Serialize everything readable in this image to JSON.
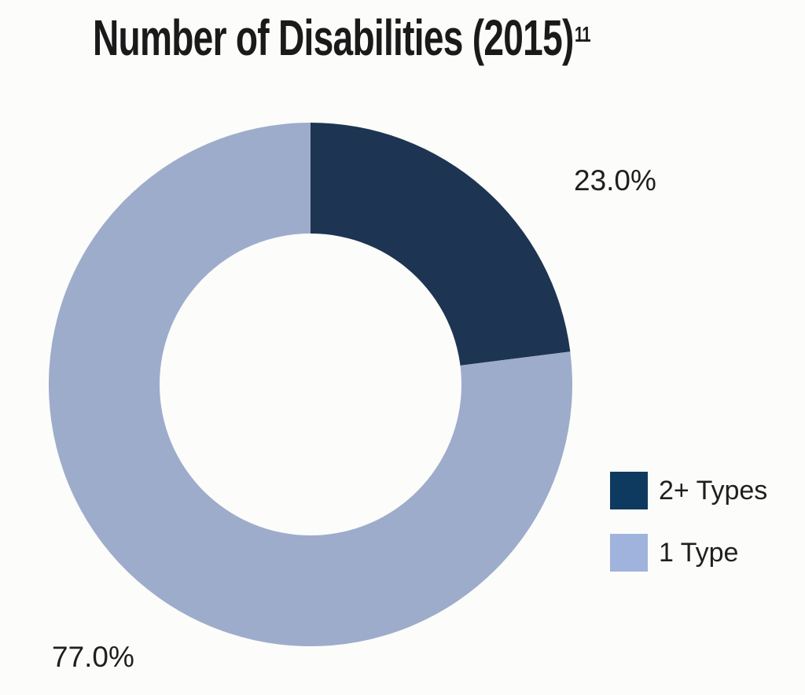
{
  "title": "Number of Disabilities (2015)",
  "title_footnote": "11",
  "chart_data": {
    "type": "pie",
    "donut": true,
    "title": "Number of Disabilities (2015)",
    "slices": [
      {
        "label": "2+ Types",
        "value": 23.0,
        "display": "23.0%",
        "color": "#1d3552"
      },
      {
        "label": "1 Type",
        "value": 77.0,
        "display": "77.0%",
        "color": "#9eaccb"
      }
    ],
    "legend_placement": "bottom-right",
    "legend": [
      {
        "label": "2+ Types",
        "color": "#0f3a5f"
      },
      {
        "label": "1 Type",
        "color": "#9fb3dc"
      }
    ]
  },
  "colors": {
    "background": "#fcfcfa",
    "hole": "#fcfcfa"
  }
}
